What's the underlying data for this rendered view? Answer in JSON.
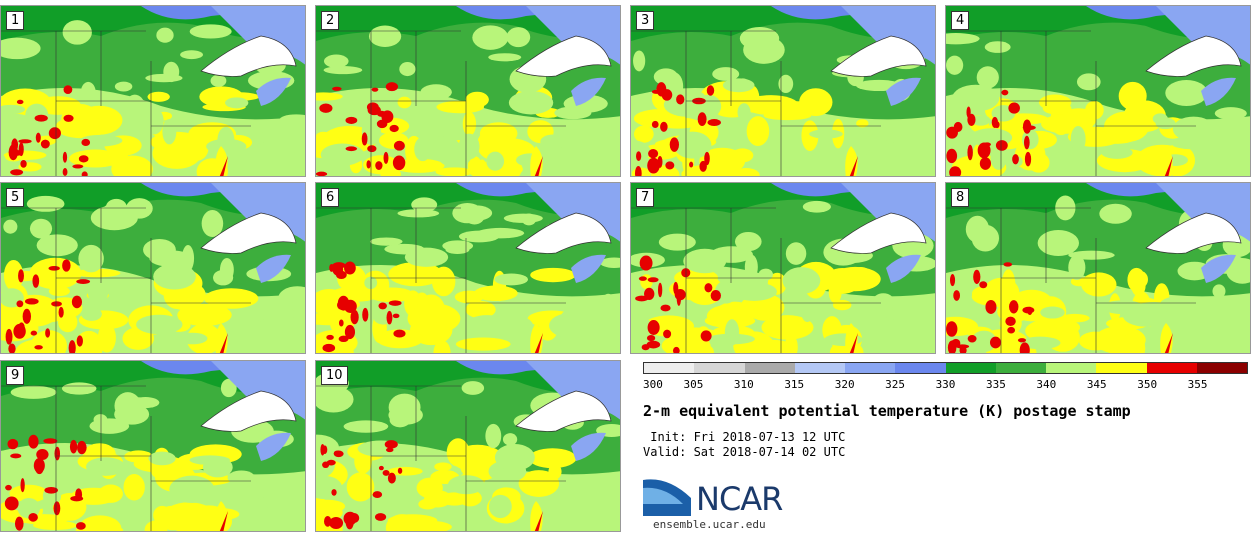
{
  "panels": [
    "1",
    "2",
    "3",
    "4",
    "5",
    "6",
    "7",
    "8",
    "9",
    "10"
  ],
  "colorbar": {
    "colors": [
      "#eeeeee",
      "#d6d6d6",
      "#aaaaaa",
      "#b4c8f5",
      "#8aa6f2",
      "#6b87ee",
      "#119e28",
      "#3dae3d",
      "#b8f57a",
      "#ffff14",
      "#e60000",
      "#8b0000"
    ],
    "ticks": [
      "300",
      "305",
      "310",
      "315",
      "320",
      "325",
      "330",
      "335",
      "340",
      "345",
      "350",
      "355"
    ]
  },
  "title": "2-m equivalent potential temperature (K) postage stamp",
  "init_line": " Init: Fri 2018-07-13 12 UTC",
  "valid_line": "Valid: Sat 2018-07-14 02 UTC",
  "logo_text": "NCAR",
  "site": "ensemble.ucar.edu"
}
